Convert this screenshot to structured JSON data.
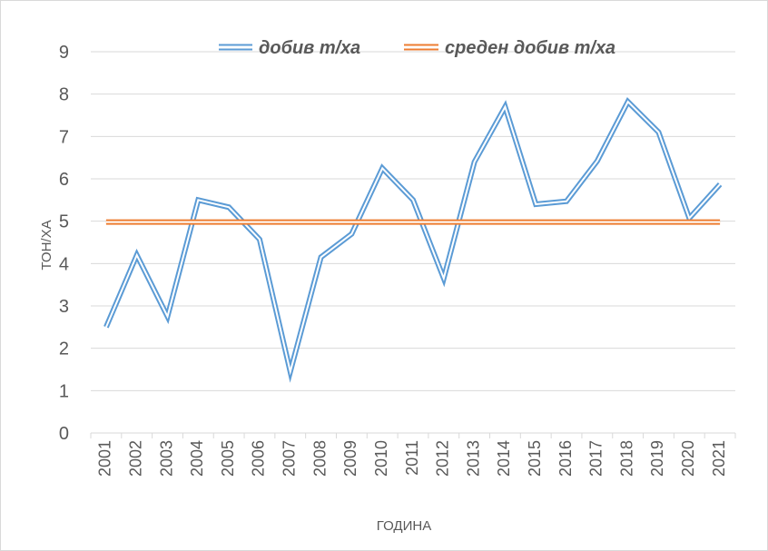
{
  "chart_data": {
    "type": "line",
    "xlabel": "ГОДИНА",
    "ylabel": "ТОН/ХА",
    "ylim": [
      0,
      9
    ],
    "yticks": [
      "0",
      "1",
      "2",
      "3",
      "4",
      "5",
      "6",
      "7",
      "8",
      "9"
    ],
    "categories": [
      "2001",
      "2002",
      "2003",
      "2004",
      "2005",
      "2006",
      "2007",
      "2008",
      "2009",
      "2010",
      "2011",
      "2012",
      "2013",
      "2014",
      "2015",
      "2016",
      "2017",
      "2018",
      "2019",
      "2020",
      "2021"
    ],
    "grid": "horizontal",
    "legend_position": "top",
    "series": [
      {
        "name": "добив т/ха",
        "color": "#5b9bd5",
        "style": "double-line",
        "values": [
          2.5,
          4.2,
          2.75,
          5.5,
          5.33,
          4.57,
          1.45,
          4.15,
          4.7,
          6.25,
          5.5,
          3.65,
          6.4,
          7.7,
          5.4,
          5.47,
          6.42,
          7.82,
          7.1,
          5.07,
          5.87
        ]
      },
      {
        "name": "среден добив т/ха",
        "color": "#ed7d31",
        "style": "double-line",
        "values": [
          4.98,
          4.98,
          4.98,
          4.98,
          4.98,
          4.98,
          4.98,
          4.98,
          4.98,
          4.98,
          4.98,
          4.98,
          4.98,
          4.98,
          4.98,
          4.98,
          4.98,
          4.98,
          4.98,
          4.98,
          4.98
        ]
      }
    ]
  }
}
